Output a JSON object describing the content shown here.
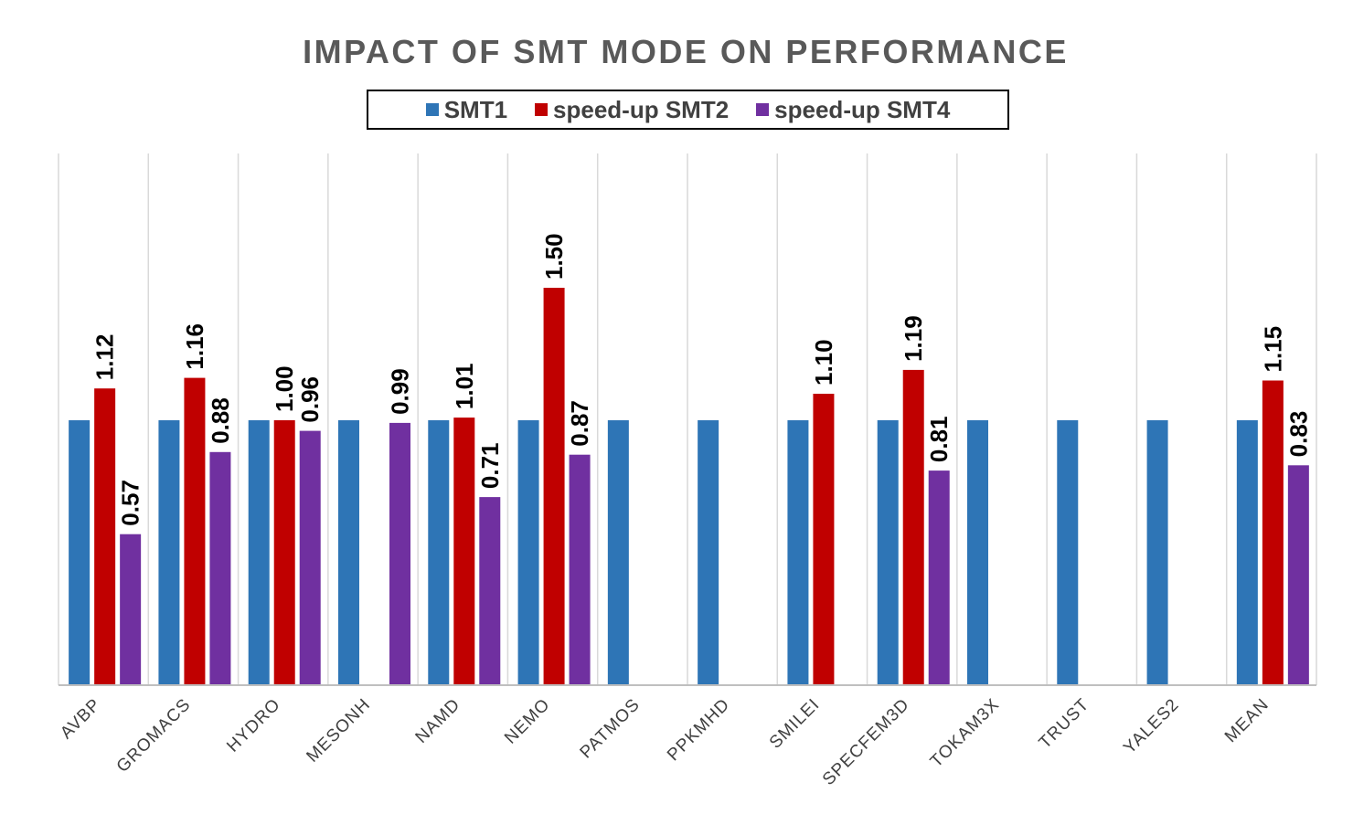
{
  "chart_data": {
    "type": "bar",
    "title": "IMPACT OF SMT MODE ON PERFORMANCE",
    "categories": [
      "AVBP",
      "GROMACS",
      "HYDRO",
      "MESONH",
      "NAMD",
      "NEMO",
      "PATMOS",
      "PPKMHD",
      "SMILEI",
      "SPECFEM3D",
      "TOKAM3X",
      "TRUST",
      "YALES2",
      "MEAN"
    ],
    "series": [
      {
        "name": "SMT1",
        "color": "#2E75B6",
        "values": [
          1,
          1,
          1,
          1,
          1,
          1,
          1,
          1,
          1,
          1,
          1,
          1,
          1,
          1
        ],
        "labels": [
          null,
          null,
          null,
          null,
          null,
          null,
          null,
          null,
          null,
          null,
          null,
          null,
          null,
          null
        ]
      },
      {
        "name": "speed-up SMT2",
        "color": "#C00000",
        "values": [
          1.12,
          1.16,
          1.0,
          null,
          1.01,
          1.5,
          null,
          null,
          1.1,
          1.19,
          null,
          null,
          null,
          1.15
        ],
        "labels": [
          "1.12",
          "1.16",
          "1.00",
          null,
          "1.01",
          "1.50",
          null,
          null,
          "1.10",
          "1.19",
          null,
          null,
          null,
          "1.15"
        ]
      },
      {
        "name": "speed-up SMT4",
        "color": "#7030A0",
        "values": [
          0.57,
          0.88,
          0.96,
          0.99,
          0.71,
          0.87,
          null,
          null,
          null,
          0.81,
          null,
          null,
          null,
          0.83
        ],
        "labels": [
          "0.57",
          "0.88",
          "0.96",
          "0.99",
          "0.71",
          "0.87",
          null,
          null,
          null,
          "0.81",
          null,
          null,
          null,
          "0.83"
        ]
      }
    ],
    "ylim": [
      0,
      2
    ],
    "grid": "vertical",
    "legend": "top-center",
    "xlabel": "",
    "ylabel": ""
  }
}
